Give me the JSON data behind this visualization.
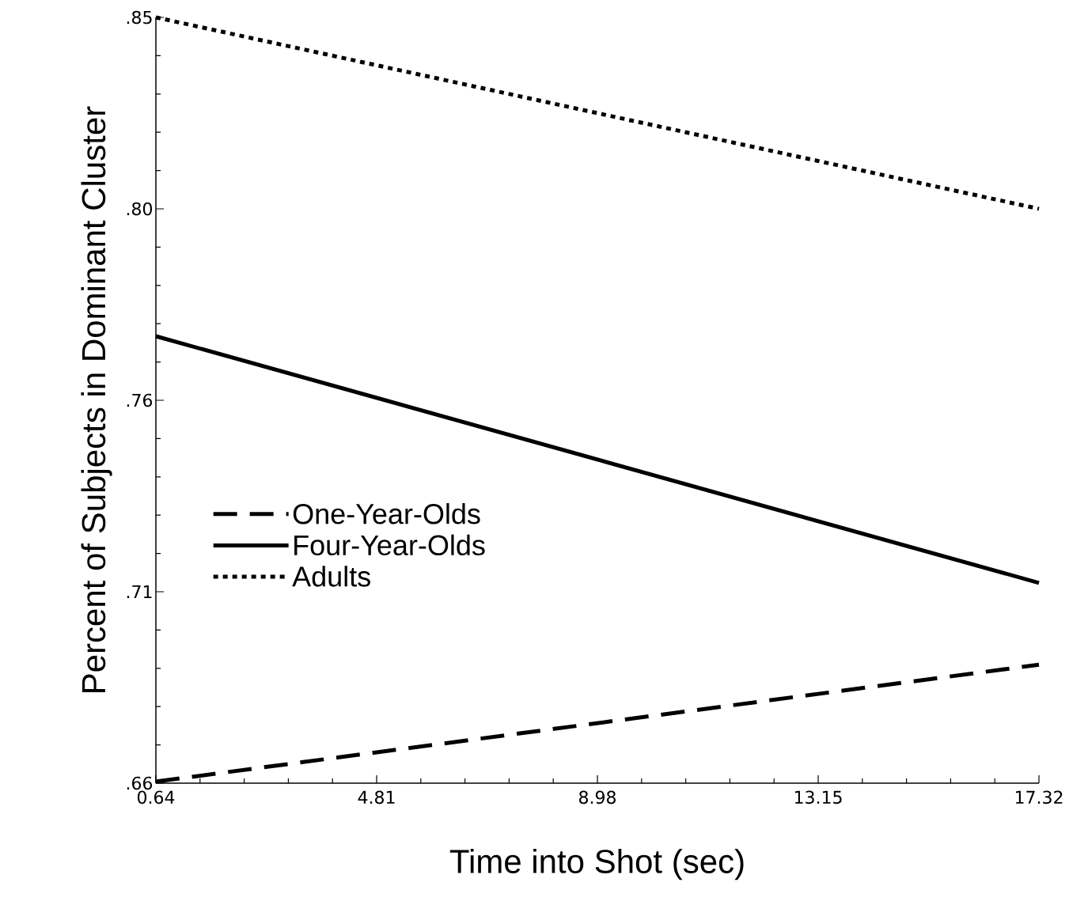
{
  "chart_data": {
    "type": "line",
    "xlabel": "Time into Shot (sec)",
    "ylabel": "Percent of Subjects in Dominant Cluster",
    "x": [
      0.64,
      17.32
    ],
    "series": [
      {
        "name": "One-Year-Olds",
        "color": "#000000",
        "line_style": "dashed",
        "values": [
          0.6604,
          0.6894
        ]
      },
      {
        "name": "Four-Year-Olds",
        "color": "#000000",
        "line_style": "solid",
        "values": [
          0.7709,
          0.7097
        ]
      },
      {
        "name": "Adults",
        "color": "#000000",
        "line_style": "dotted",
        "values": [
          0.85,
          0.8025
        ]
      }
    ],
    "xlim": [
      0.64,
      17.32
    ],
    "xticks": [
      0.64,
      4.81,
      8.98,
      13.15,
      17.32
    ],
    "ylim": [
      0.66,
      0.85
    ],
    "yticks": [
      {
        "value": 0.66,
        "label": ".66"
      },
      {
        "value": 0.7075,
        "label": ".71"
      },
      {
        "value": 0.755,
        "label": ".76"
      },
      {
        "value": 0.8025,
        "label": ".80"
      },
      {
        "value": 0.85,
        "label": ".85"
      }
    ],
    "grid": false,
    "legend": "left",
    "marker": "none"
  }
}
